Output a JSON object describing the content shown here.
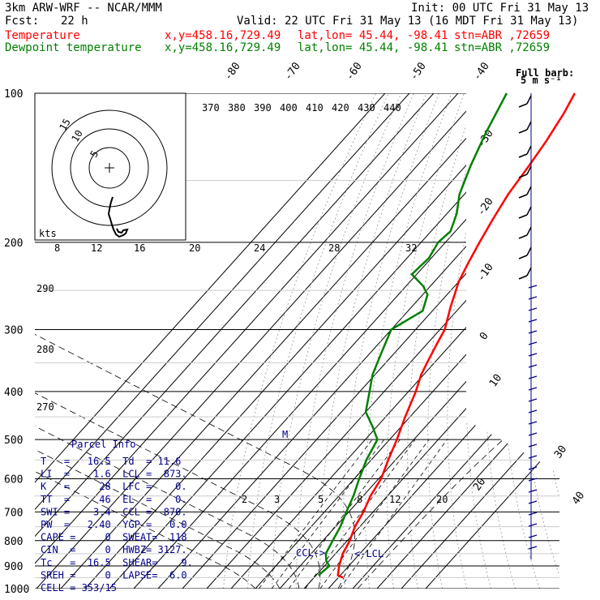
{
  "header": {
    "model": "3km ARW-WRF -- NCAR/MMM",
    "init": "Init: 00 UTC Fri 31 May 13",
    "fcst_label": "Fcst:",
    "fcst_value": "22 h",
    "valid": "Valid: 22 UTC Fri 31 May 13 (16 MDT Fri 31 May 13)",
    "temp_label": "Temperature",
    "dew_label": "Dewpoint temperature",
    "temp_xy": "x,y=458.16,729.49",
    "temp_latlon": "lat,lon= 45.44, -98.41",
    "temp_stn": "stn=ABR ,72659",
    "dew_xy": "x,y=458.16,729.49",
    "dew_latlon": "lat,lon= 45.44, -98.41",
    "dew_stn": "stn=ABR ,72659"
  },
  "barb_title": [
    "Full barb:",
    "5 m s⁻¹"
  ],
  "hodo_units": "kts",
  "hodo_rings": [
    "5",
    "10",
    "15"
  ],
  "colors": {
    "temperature": "#ff0000",
    "dewpoint": "#008000",
    "parcel": "#00008b",
    "barbs": "#00008b"
  },
  "chart_data": {
    "type": "line",
    "title": "",
    "ylabel": "pressure (hPa)",
    "y_scale": "log",
    "ylim": [
      1000,
      100
    ],
    "pressure_levels": [
      100,
      200,
      300,
      400,
      500,
      600,
      700,
      800,
      900,
      1000
    ],
    "isotherm_top_labels": [
      "-80",
      "-70",
      "-60",
      "-50",
      "-40"
    ],
    "isotherm_right_labels": [
      "-30",
      "-20",
      "-10",
      "0",
      "10",
      "20",
      "30",
      "40"
    ],
    "theta_labels": [
      "370",
      "380",
      "390",
      "400",
      "410",
      "420",
      "430",
      "440"
    ],
    "theta_low_labels": [
      "290",
      "280",
      "270"
    ],
    "mixing_ratio_labels_upper": [
      "8",
      "12",
      "16",
      "20",
      "24",
      "28",
      "32"
    ],
    "mixing_ratio_labels_lower": [
      "2",
      "3",
      "5",
      "8",
      "12",
      "20"
    ],
    "series": [
      {
        "name": "Temperature",
        "color": "#ff0000",
        "points": [
          [
            950,
            22
          ],
          [
            940,
            19
          ],
          [
            900,
            16
          ],
          [
            850,
            13
          ],
          [
            800,
            11
          ],
          [
            750,
            8
          ],
          [
            700,
            6
          ],
          [
            650,
            3
          ],
          [
            600,
            1
          ],
          [
            550,
            -3
          ],
          [
            500,
            -7
          ],
          [
            450,
            -12
          ],
          [
            400,
            -17
          ],
          [
            370,
            -21
          ],
          [
            350,
            -23
          ],
          [
            320,
            -26
          ],
          [
            300,
            -28
          ],
          [
            270,
            -34
          ],
          [
            240,
            -40
          ],
          [
            220,
            -43
          ],
          [
            200,
            -46
          ],
          [
            180,
            -49
          ],
          [
            160,
            -52
          ],
          [
            140,
            -54
          ],
          [
            125,
            -56
          ],
          [
            110,
            -59
          ],
          [
            100,
            -62
          ]
        ]
      },
      {
        "name": "Dewpoint temperature",
        "color": "#008000",
        "points": [
          [
            940,
            11
          ],
          [
            900,
            12
          ],
          [
            880,
            9
          ],
          [
            850,
            6
          ],
          [
            800,
            4
          ],
          [
            750,
            2
          ],
          [
            700,
            -1
          ],
          [
            650,
            -4
          ],
          [
            600,
            -8
          ],
          [
            550,
            -12
          ],
          [
            500,
            -15
          ],
          [
            470,
            -22
          ],
          [
            440,
            -30
          ],
          [
            400,
            -36
          ],
          [
            370,
            -41
          ],
          [
            330,
            -46
          ],
          [
            300,
            -50
          ],
          [
            275,
            -44
          ],
          [
            255,
            -48
          ],
          [
            245,
            -53
          ],
          [
            232,
            -62
          ],
          [
            215,
            -61
          ],
          [
            200,
            -63
          ],
          [
            190,
            -62
          ],
          [
            175,
            -66
          ],
          [
            160,
            -72
          ],
          [
            140,
            -78
          ],
          [
            120,
            -84
          ],
          [
            100,
            -90
          ]
        ]
      }
    ],
    "annotations": [
      "M",
      "CCL->",
      "<-LCL"
    ]
  },
  "parcel_info": {
    "title": "Parcel Info",
    "rows": [
      "T   =   16.5  Td  = 11.6",
      "LI  =    1.6  LCL =  873.",
      "K   =     28  LFC =    0.",
      "TT  =     46  EL  =    0.",
      "SWI =    3.4  CCL =  870.",
      "PW  =   2.40  YGP =   0.0",
      "CAPE =     0  SWEAT=  118",
      "CIN  =     0  HWBZ= 3127.",
      "Tc   =  16.5  SHEAR=    9.",
      "SREH =     0  LAPSE=  6.0",
      "CELL = 353/15"
    ]
  }
}
